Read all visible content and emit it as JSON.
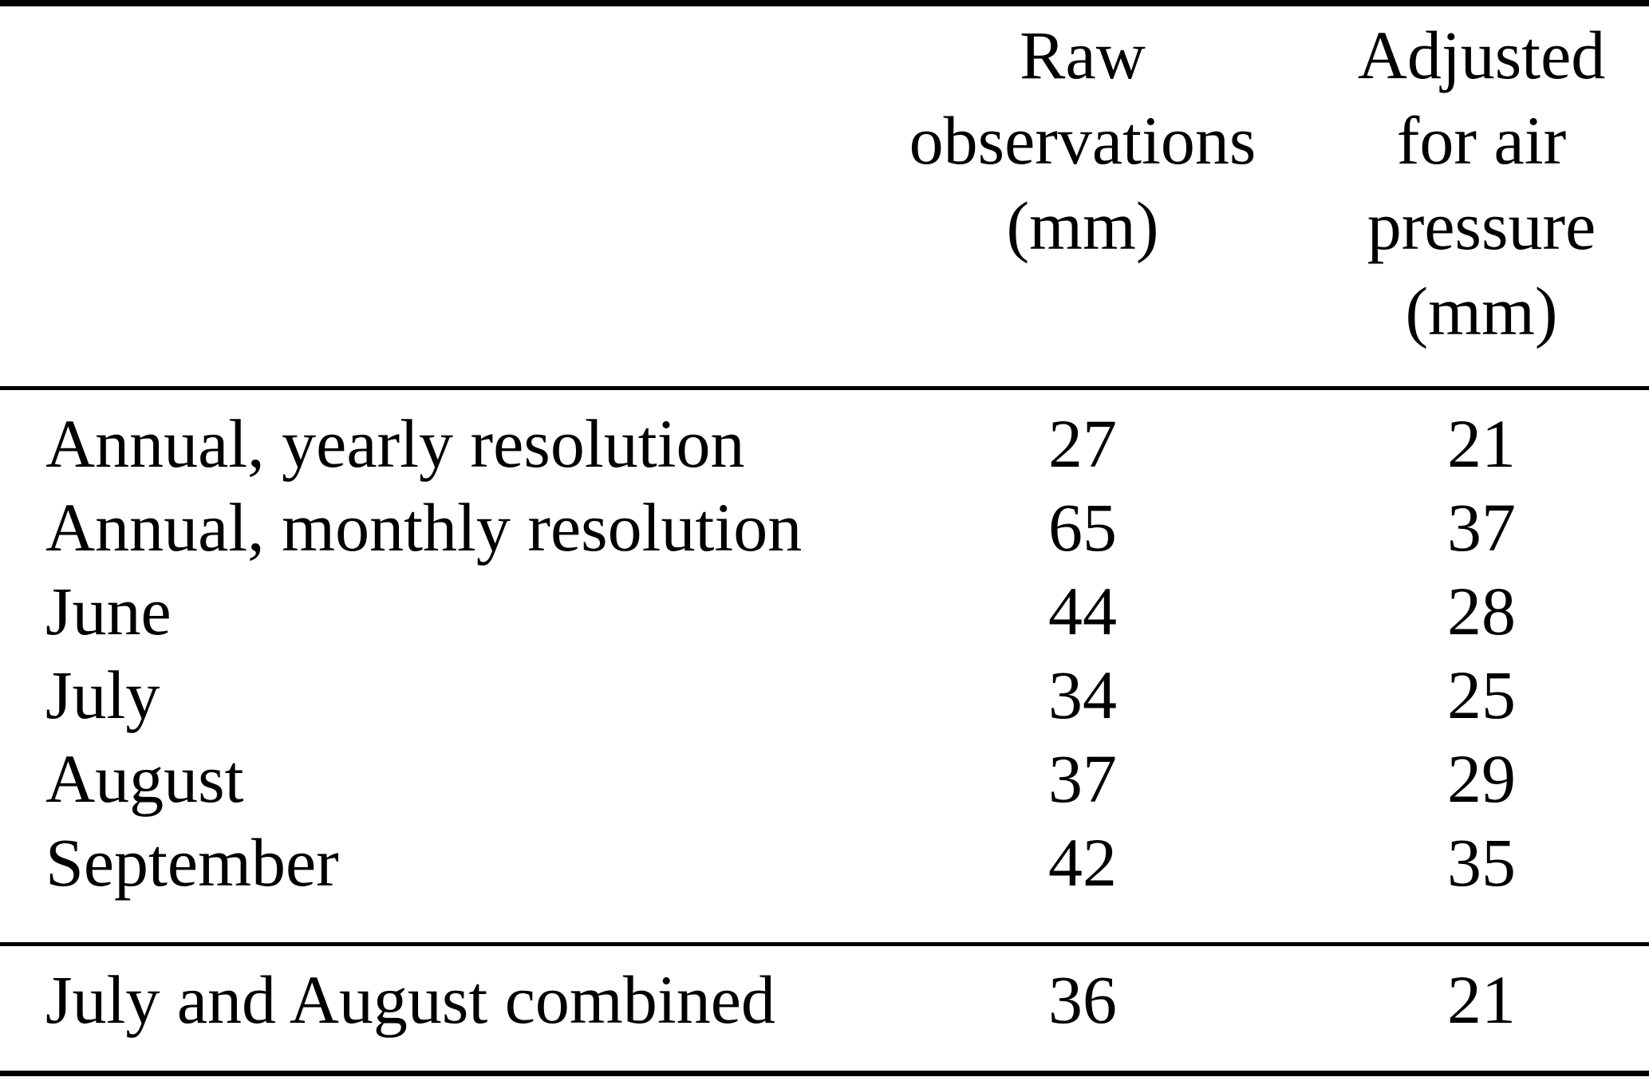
{
  "table": {
    "header": {
      "label_column_title": "",
      "raw_column_title": "Raw observations (mm)",
      "adjusted_column_title": "Adjusted for air pressure (mm)",
      "raw_lines": [
        "Raw",
        "observations",
        "(mm)"
      ],
      "adjusted_lines": [
        "Adjusted",
        "for air",
        "pressure",
        "(mm)"
      ]
    },
    "rows": [
      {
        "label": "Annual, yearly resolution",
        "raw": "27",
        "adjusted": "21"
      },
      {
        "label": "Annual, monthly resolution",
        "raw": "65",
        "adjusted": "37"
      },
      {
        "label": "June",
        "raw": "44",
        "adjusted": "28"
      },
      {
        "label": "July",
        "raw": "34",
        "adjusted": "25"
      },
      {
        "label": "August",
        "raw": "37",
        "adjusted": "29"
      },
      {
        "label": "September",
        "raw": "42",
        "adjusted": "35"
      }
    ],
    "footer_row": {
      "label": "July and August combined",
      "raw": "36",
      "adjusted": "21"
    }
  },
  "colors": {
    "background": "#ffffff",
    "text": "#000000",
    "rule": "#000000"
  }
}
